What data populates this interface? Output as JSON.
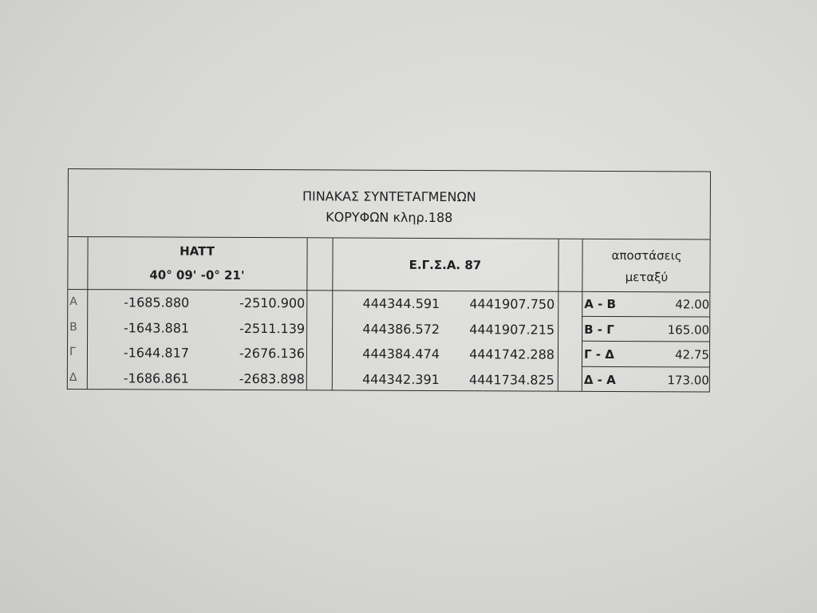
{
  "title_line1": "ΠΙΝΑΚΑΣ ΣΥΝΤΕΤΑΓΜΕΝΩΝ",
  "title_line2": "ΚΟΡΥΦΩΝ κληρ.188",
  "hatt": {
    "label": "HATT",
    "origin": "40° 09'  -0° 21'"
  },
  "egsa": {
    "label": "Ε.Γ.Σ.Α. 87"
  },
  "distances": {
    "label_line1": "αποστάσεις",
    "label_line2": "μεταξύ"
  },
  "rows": [
    {
      "point": "A",
      "hatt_x": "-1685.880",
      "hatt_y": "-2510.900",
      "egsa_x": "444344.591",
      "egsa_y": "4441907.750",
      "segment": "Α - Β",
      "distance": "42.00"
    },
    {
      "point": "B",
      "hatt_x": "-1643.881",
      "hatt_y": "-2511.139",
      "egsa_x": "444386.572",
      "egsa_y": "4441907.215",
      "segment": "Β - Γ",
      "distance": "165.00"
    },
    {
      "point": "Γ",
      "hatt_x": "-1644.817",
      "hatt_y": "-2676.136",
      "egsa_x": "444384.474",
      "egsa_y": "4441742.288",
      "segment": "Γ - Δ",
      "distance": "42.75"
    },
    {
      "point": "Δ",
      "hatt_x": "-1686.861",
      "hatt_y": "-2683.898",
      "egsa_x": "444342.391",
      "egsa_y": "4441734.825",
      "segment": "Δ - Α",
      "distance": "173.00"
    }
  ]
}
